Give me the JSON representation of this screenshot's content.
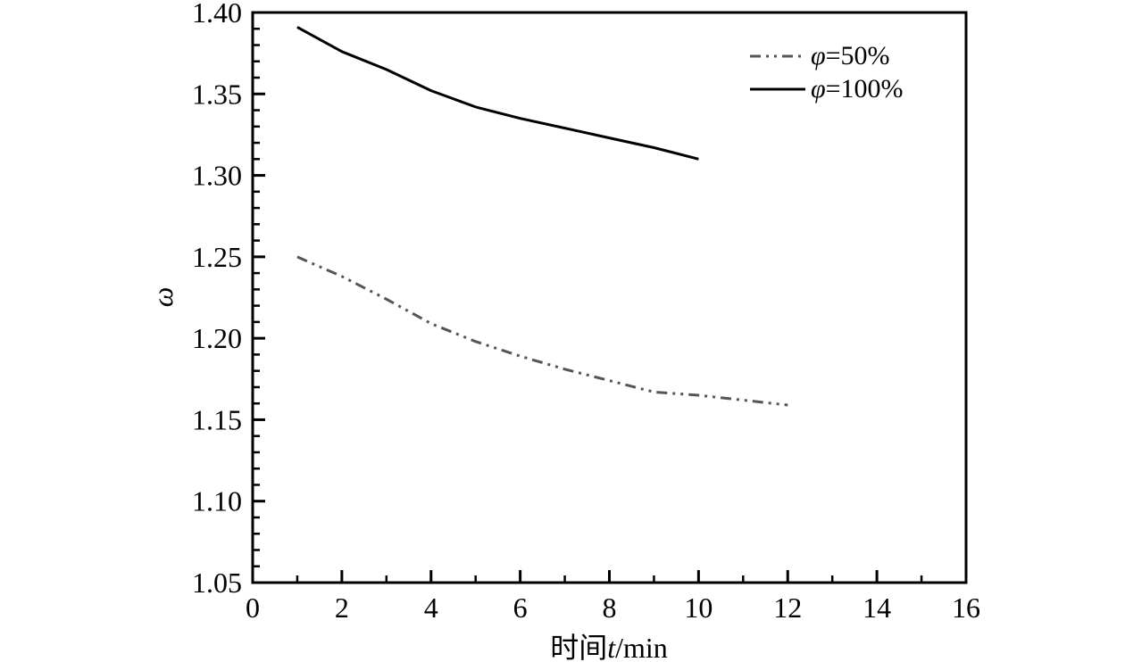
{
  "chart_data": {
    "type": "line",
    "title": "",
    "xlabel_prefix": "时间",
    "xlabel_var": "t",
    "xlabel_unit": "/min",
    "ylabel": "ω",
    "xlim": [
      0,
      16
    ],
    "ylim": [
      1.05,
      1.4
    ],
    "xticks": [
      "0",
      "2",
      "4",
      "6",
      "8",
      "10",
      "12",
      "14",
      "16"
    ],
    "yticks": [
      "1.05",
      "1.10",
      "1.15",
      "1.20",
      "1.25",
      "1.30",
      "1.35",
      "1.40"
    ],
    "grid": false,
    "legend_position": "top-right",
    "series": [
      {
        "name_var": "φ",
        "name_rest": "=50%",
        "style": "dash-dot",
        "color": "#555555",
        "x": [
          1,
          2,
          3,
          4,
          5,
          6,
          7,
          8,
          9,
          10,
          11,
          12
        ],
        "y": [
          1.25,
          1.238,
          1.224,
          1.209,
          1.198,
          1.189,
          1.181,
          1.174,
          1.167,
          1.165,
          1.162,
          1.159
        ]
      },
      {
        "name_var": "φ",
        "name_rest": "=100%",
        "style": "solid",
        "color": "#000000",
        "x": [
          1,
          2,
          3,
          4,
          5,
          6,
          7,
          8,
          9,
          10
        ],
        "y": [
          1.391,
          1.376,
          1.365,
          1.352,
          1.342,
          1.335,
          1.329,
          1.323,
          1.317,
          1.31
        ]
      }
    ]
  }
}
